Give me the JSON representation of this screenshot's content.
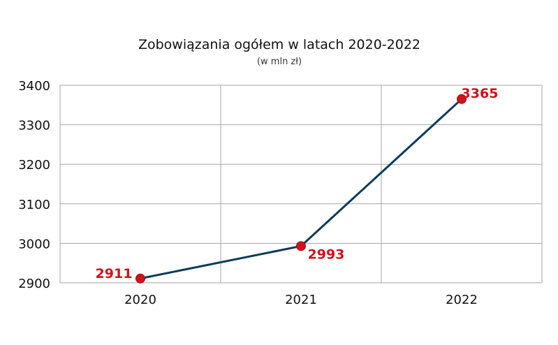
{
  "chart_data": {
    "type": "line",
    "title": "Zobowiązania ogółem w latach 2020-2022",
    "subtitle": "(w mln zł)",
    "categories": [
      "2020",
      "2021",
      "2022"
    ],
    "series": [
      {
        "values": [
          2911,
          2993,
          3365
        ]
      }
    ],
    "data_labels": [
      "2911",
      "2993",
      "3365"
    ],
    "ylim": [
      2900,
      3400
    ],
    "yticks": [
      "2900",
      "3000",
      "3100",
      "3200",
      "3300",
      "3400"
    ],
    "grid": true,
    "legend": "none",
    "colors": {
      "line": "#0d3a5c",
      "marker": "#d0121b",
      "label": "#d0121b",
      "grid": "#a6a6a6"
    }
  }
}
